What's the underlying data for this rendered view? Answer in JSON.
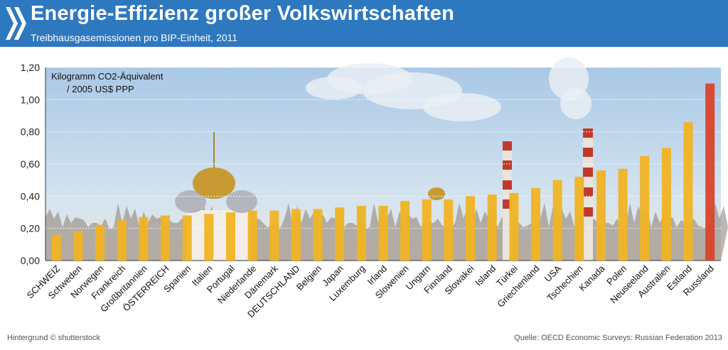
{
  "header": {
    "title": "Energie-Effizienz großer Volkswirtschaften",
    "subtitle": "Treibhausgasemissionen pro BIP-Einheit, 2011",
    "logo_icon": "oecd-chevrons-icon"
  },
  "footer": {
    "left": "Hintergrund © shutterstock",
    "right": "Quelle:  OECD Economic Surveys: Russian Federation 2013"
  },
  "colors": {
    "header_bg": "#2e78bf",
    "bar": "#f0b323",
    "highlight_bar": "#d9432a",
    "sky": "#c9ddef"
  },
  "chart_data": {
    "type": "bar",
    "unit_label_line1": "Kilogramm CO2-Äquivalent",
    "unit_label_line2": "/ 2005 US$ PPP",
    "ylim": [
      0,
      1.2
    ],
    "yticks": [
      "0,00",
      "0,20",
      "0,40",
      "0,60",
      "0,80",
      "1,00",
      "1,20"
    ],
    "grid": true,
    "highlight": "Russland",
    "categories": [
      "SCHWEIZ",
      "Schweden",
      "Norwegen",
      "Frankreich",
      "Großbritannien",
      "ÖSTERREICH",
      "Spanien",
      "Italien",
      "Portugal",
      "Niederlande",
      "Dänemark",
      "DEUTSCHLAND",
      "Belgien",
      "Japan",
      "Luxemburg",
      "Irland",
      "Slowenien",
      "Ungarn",
      "Finnland",
      "Slowakei",
      "Island",
      "Türkei",
      "Griechenland",
      "USA",
      "Tschechien",
      "Kanada",
      "Polen",
      "Neuseeland",
      "Australien",
      "Estland",
      "Russland"
    ],
    "values": [
      0.16,
      0.18,
      0.22,
      0.25,
      0.27,
      0.28,
      0.28,
      0.29,
      0.3,
      0.31,
      0.31,
      0.32,
      0.32,
      0.33,
      0.34,
      0.34,
      0.37,
      0.38,
      0.38,
      0.4,
      0.41,
      0.42,
      0.45,
      0.5,
      0.52,
      0.56,
      0.57,
      0.65,
      0.7,
      0.86,
      1.1
    ]
  }
}
